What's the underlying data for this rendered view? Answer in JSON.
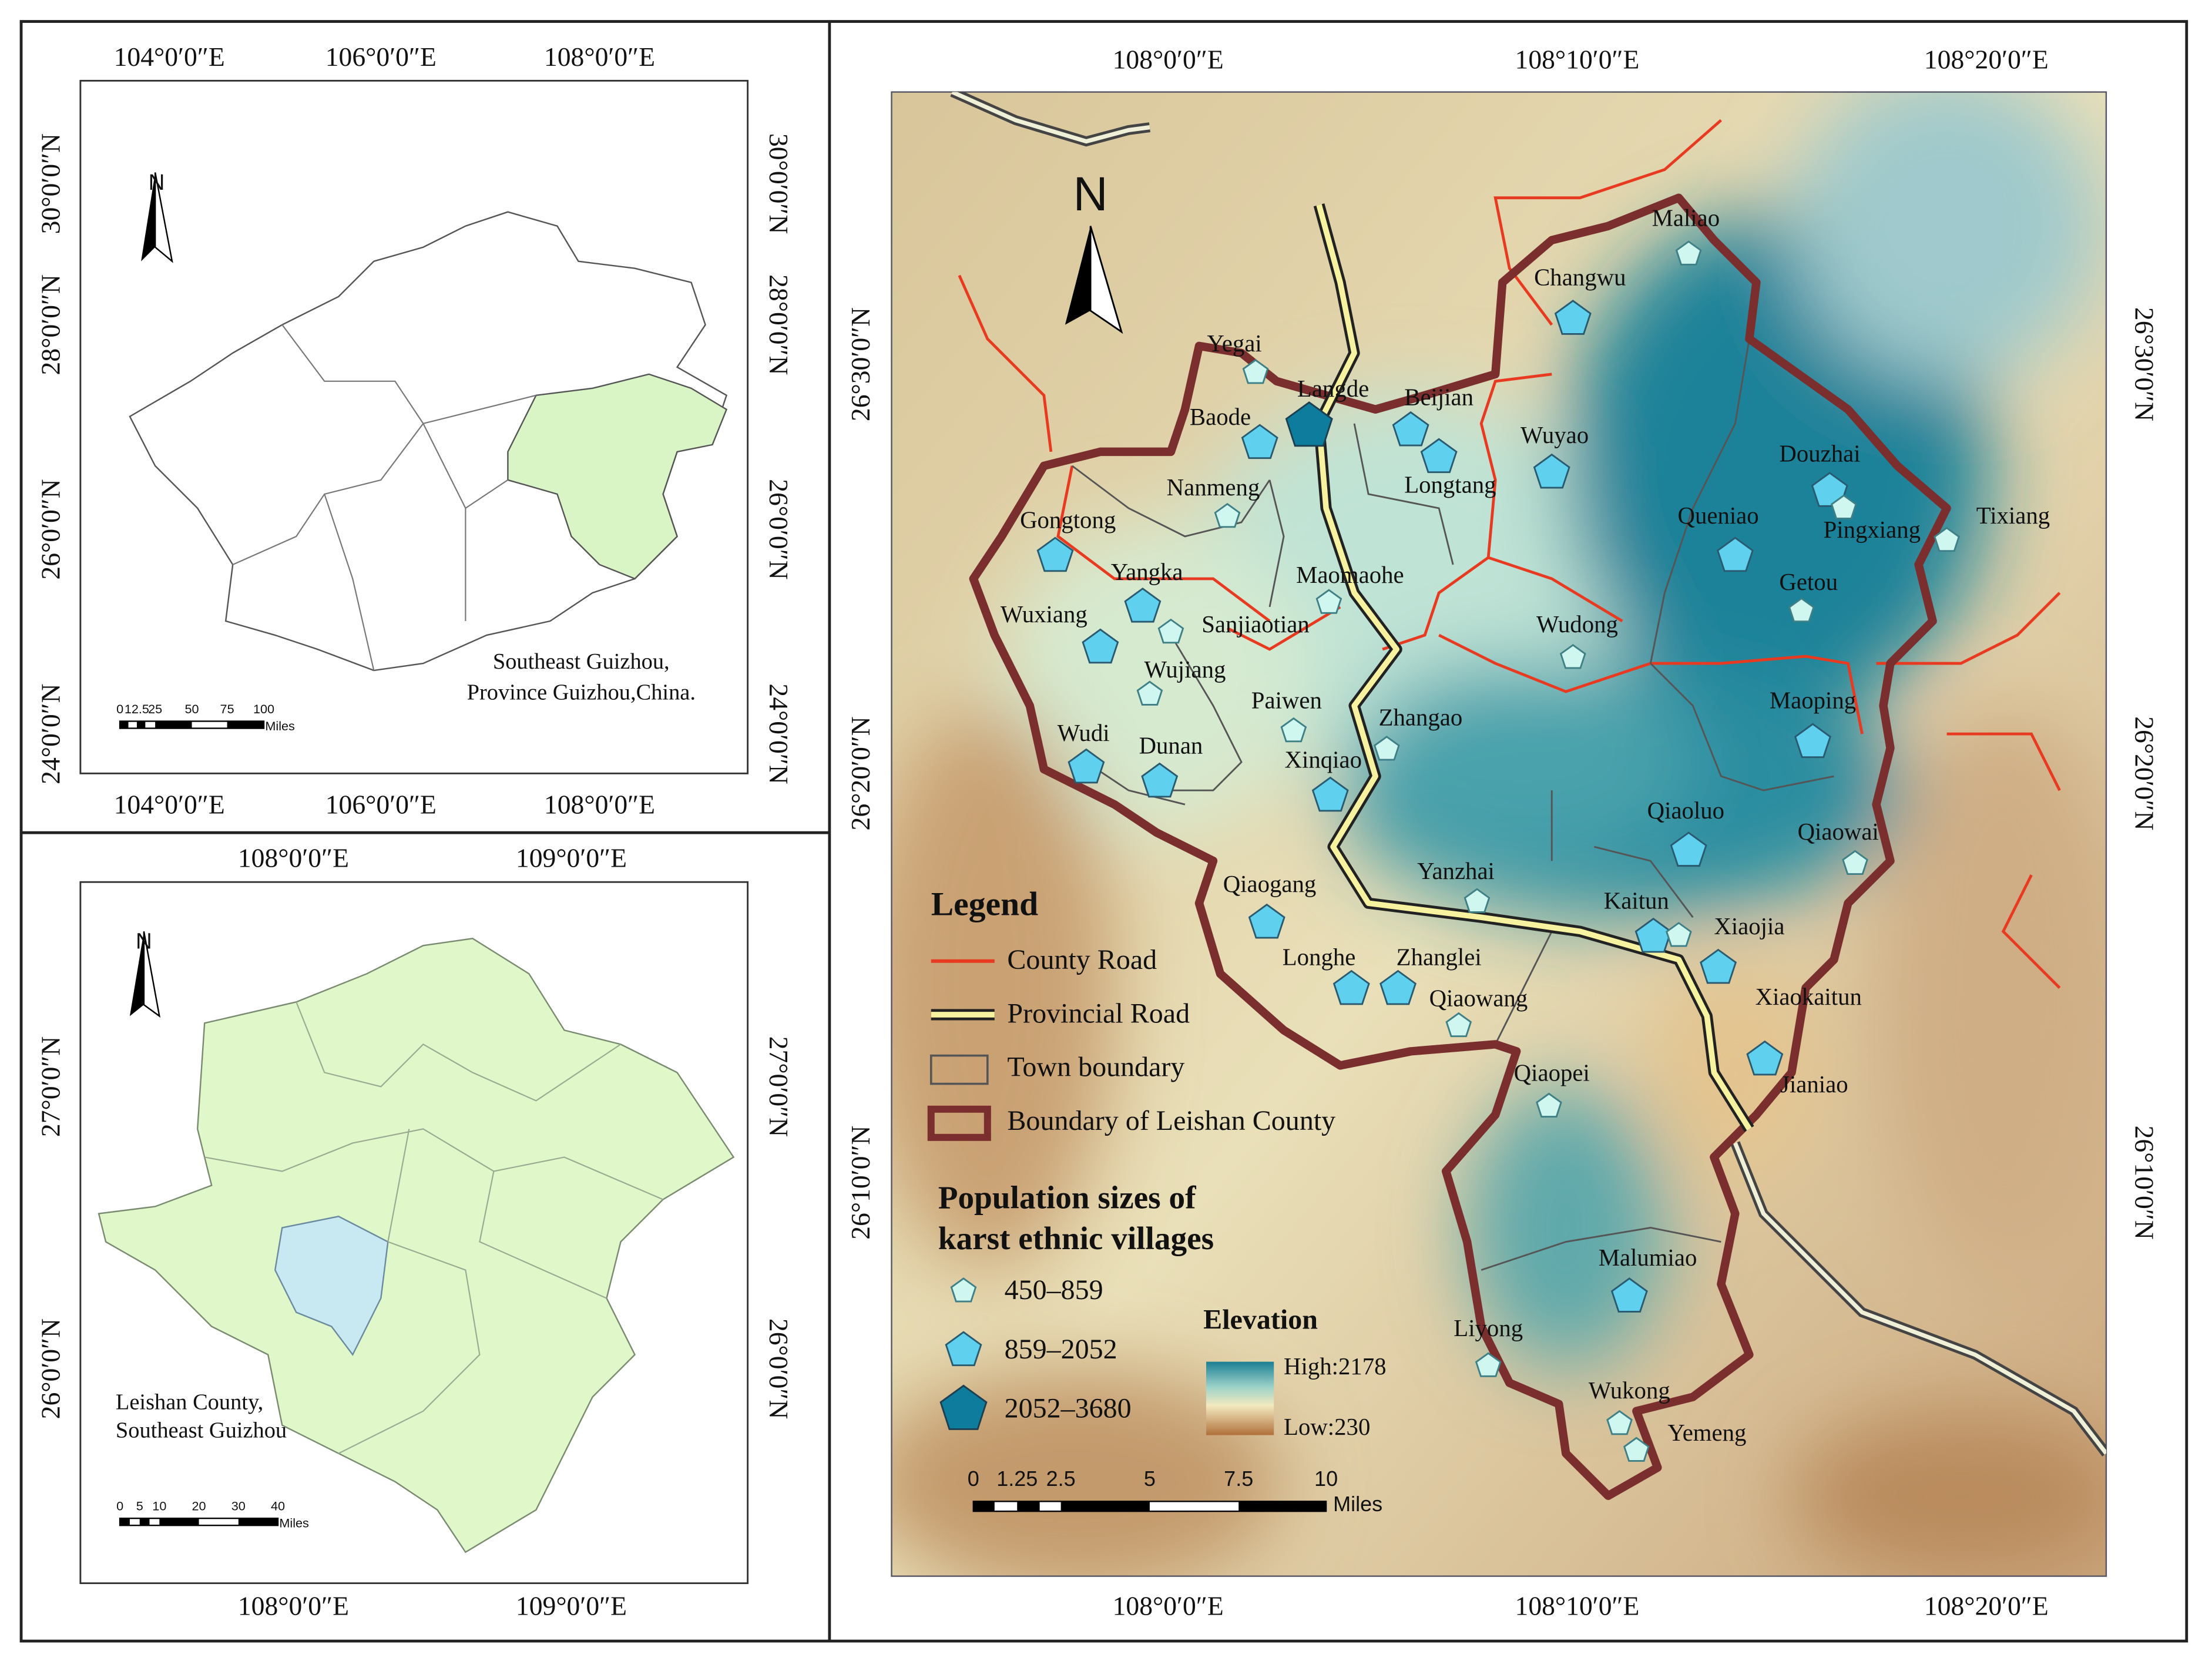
{
  "panel_overview": {
    "x_top": [
      "104°0′0″E",
      "106°0′0″E",
      "108°0′0″E"
    ],
    "x_bottom": [
      "104°0′0″E",
      "106°0′0″E",
      "108°0′0″E"
    ],
    "y_left": [
      "30°0′0″N",
      "28°0′0″N",
      "26°0′0″N",
      "24°0′0″N"
    ],
    "y_right": [
      "30°0′0″N",
      "28°0′0″N",
      "26°0′0″N",
      "24°0′0″N"
    ],
    "north": "N",
    "caption": [
      "Southeast Guizhou,",
      "Province Guizhou,China."
    ],
    "scale_labels": [
      "0",
      "12.5",
      "25",
      "50",
      "75",
      "100"
    ],
    "scale_unit": "Miles"
  },
  "panel_southeast": {
    "x_top": [
      "108°0′0″E",
      "109°0′0″E"
    ],
    "x_bottom": [
      "108°0′0″E",
      "109°0′0″E"
    ],
    "y_left": [
      "27°0′0″N",
      "26°0′0″N"
    ],
    "y_right": [
      "27°0′0″N",
      "26°0′0″N"
    ],
    "north": "N",
    "caption": [
      "Leishan County,",
      "Southeast Guizhou"
    ],
    "scale_labels": [
      "0",
      "5",
      "10",
      "20",
      "30",
      "40"
    ],
    "scale_unit": "Miles"
  },
  "main_map": {
    "x_top": [
      "108°0′0″E",
      "108°10′0″E",
      "108°20′0″E"
    ],
    "x_bottom": [
      "108°0′0″E",
      "108°10′0″E",
      "108°20′0″E"
    ],
    "y_left": [
      "26°30′0″N",
      "26°20′0″N",
      "26°10′0″N"
    ],
    "y_right": [
      "26°30′0″N",
      "26°20′0″N",
      "26°10′0″N"
    ],
    "north": "N",
    "villages": [
      {
        "name": "Maliao",
        "size_class": 0
      },
      {
        "name": "Changwu",
        "size_class": 1
      },
      {
        "name": "Yegai",
        "size_class": 0
      },
      {
        "name": "Langde",
        "size_class": 2
      },
      {
        "name": "Baode",
        "size_class": 1
      },
      {
        "name": "Beijian",
        "size_class": 1
      },
      {
        "name": "Longtang",
        "size_class": 1
      },
      {
        "name": "Wuyao",
        "size_class": 1
      },
      {
        "name": "Nanmeng",
        "size_class": 0
      },
      {
        "name": "Douzhai",
        "size_class": 1
      },
      {
        "name": "Pingxiang",
        "size_class": 0
      },
      {
        "name": "Tixiang",
        "size_class": 0
      },
      {
        "name": "Gongtong",
        "size_class": 1
      },
      {
        "name": "Queniao",
        "size_class": 1
      },
      {
        "name": "Yangka",
        "size_class": 1
      },
      {
        "name": "Maomaohe",
        "size_class": 0
      },
      {
        "name": "Getou",
        "size_class": 0
      },
      {
        "name": "Sanjiaotian",
        "size_class": 0
      },
      {
        "name": "Wuxiang",
        "size_class": 1
      },
      {
        "name": "Wudong",
        "size_class": 0
      },
      {
        "name": "Wujiang",
        "size_class": 0
      },
      {
        "name": "Paiwen",
        "size_class": 0
      },
      {
        "name": "Zhangao",
        "size_class": 0
      },
      {
        "name": "Maoping",
        "size_class": 1
      },
      {
        "name": "Wudi",
        "size_class": 1
      },
      {
        "name": "Dunan",
        "size_class": 1
      },
      {
        "name": "Xinqiao",
        "size_class": 1
      },
      {
        "name": "Qiaoluo",
        "size_class": 1
      },
      {
        "name": "Qiaowai",
        "size_class": 0
      },
      {
        "name": "Yanzhai",
        "size_class": 0
      },
      {
        "name": "Qiaogang",
        "size_class": 1
      },
      {
        "name": "Kaitun",
        "size_class": 1
      },
      {
        "name": "Xiaojia",
        "size_class": 0
      },
      {
        "name": "Longhe",
        "size_class": 1
      },
      {
        "name": "Zhanglei",
        "size_class": 1
      },
      {
        "name": "Xiaokaitun",
        "size_class": 1
      },
      {
        "name": "Qiaowang",
        "size_class": 0
      },
      {
        "name": "Jianiao",
        "size_class": 1
      },
      {
        "name": "Qiaopei",
        "size_class": 0
      },
      {
        "name": "Malumiao",
        "size_class": 1
      },
      {
        "name": "Liyong",
        "size_class": 0
      },
      {
        "name": "Wukong",
        "size_class": 0
      },
      {
        "name": "Yemeng",
        "size_class": 0
      }
    ],
    "legend": {
      "title": "Legend",
      "items": [
        "County Road",
        "Provincial Road",
        "Town boundary",
        "Boundary of Leishan County"
      ],
      "population_title": [
        "Population sizes of",
        "karst ethnic villages"
      ],
      "population_classes": [
        "450–859",
        "859–2052",
        "2052–3680"
      ],
      "elevation_title": "Elevation",
      "elevation_high": "High:2178",
      "elevation_low": "Low:230"
    },
    "scale_labels": [
      "0",
      "1.25",
      "2.5",
      "5",
      "7.5",
      "10"
    ],
    "scale_unit": "Miles"
  }
}
